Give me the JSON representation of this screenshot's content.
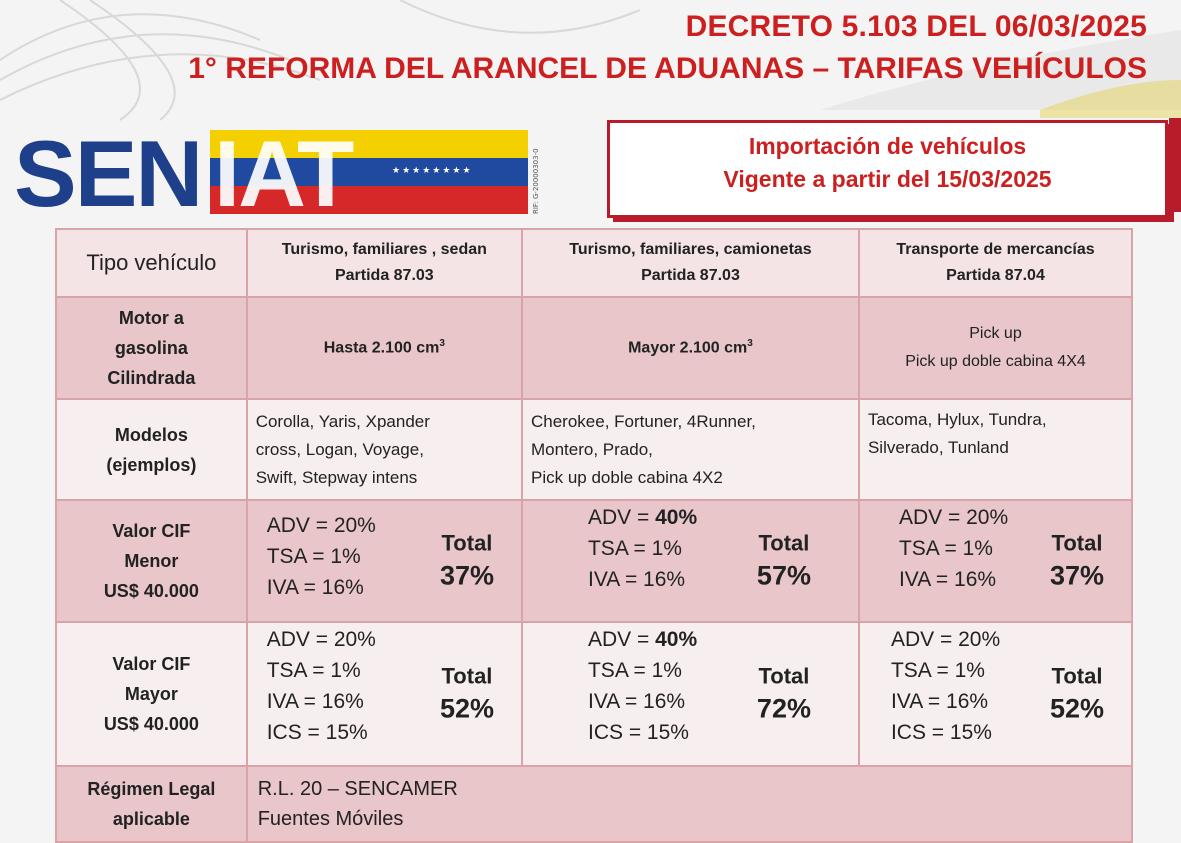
{
  "header": {
    "line1": "DECRETO 5.103 DEL 06/03/2025",
    "line2": "1° REFORMA DEL ARANCEL DE ADUANAS – TARIFAS VEHÍCULOS"
  },
  "logo": {
    "part1": "SEN",
    "part2": "IAT",
    "rif": "RIF: G-20000303-0"
  },
  "notice": {
    "line1": "Importación de vehículos",
    "line2": "Vigente a partir del 15/03/2025"
  },
  "colors": {
    "accent_red": "#cc1f1f",
    "logo_blue": "#1e3f8a",
    "row_pink": "#e8c6c9",
    "row_light": "#f7eeef"
  },
  "table": {
    "header": {
      "label": "Tipo vehículo",
      "cols": [
        {
          "line1": "Turismo, familiares , sedan",
          "line2": "Partida 87.03"
        },
        {
          "line1": "Turismo, familiares, camionetas",
          "line2": "Partida 87.03"
        },
        {
          "line1": "Transporte de mercancías",
          "line2": "Partida 87.04"
        }
      ]
    },
    "motor": {
      "label1": "Motor a",
      "label2": "gasolina",
      "label3": "Cilindrada",
      "col1": "Hasta 2.100 cm",
      "col2": "Mayor 2.100 cm",
      "sup": "3",
      "col3_line1": "Pick up",
      "col3_line2": "Pick up doble cabina 4X4"
    },
    "models": {
      "label1": "Modelos",
      "label2": "(ejemplos)",
      "col1": [
        "Corolla, Yaris, Xpander",
        "cross, Logan, Voyage,",
        "Swift, Stepway intens"
      ],
      "col2": [
        "Cherokee, Fortuner, 4Runner,",
        "Montero, Prado,",
        "Pick up doble cabina 4X2"
      ],
      "col3": [
        "Tacoma, Hylux, Tundra,",
        "Silverado, Tunland"
      ]
    },
    "cif_menor": {
      "label1": "Valor CIF",
      "label2": "Menor",
      "label3": "US$ 40.000",
      "col1": {
        "adv": "ADV = 20%",
        "tsa": "TSA =   1%",
        "iva": "IVA =  16%",
        "total_label": "Total",
        "total": "37%"
      },
      "col2": {
        "adv_prefix": "ADV = ",
        "adv_val": "40%",
        "tsa": "TSA =    1%",
        "iva": "IVA =   16%",
        "total_label": "Total",
        "total": "57%"
      },
      "col3": {
        "adv": "ADV = 20%",
        "tsa": "TSA =    1%",
        "iva": "IVA =  16%",
        "total_label": "Total",
        "total": "37%"
      }
    },
    "cif_mayor": {
      "label1": "Valor CIF",
      "label2": "Mayor",
      "label3": "US$ 40.000",
      "col1": {
        "adv": "ADV = 20%",
        "tsa": "TSA =   1%",
        "iva": "IVA =  16%",
        "ics": "ICS =   15%",
        "total_label": "Total",
        "total": "52%"
      },
      "col2": {
        "adv_prefix": "ADV = ",
        "adv_val": "40%",
        "tsa": "TSA =    1%",
        "iva": "IVA =   16%",
        "ics": "ICS =    15%",
        "total_label": "Total",
        "total": "72%"
      },
      "col3": {
        "adv": "ADV = 20%",
        "tsa": "TSA =    1%",
        "iva": "IVA =  16%",
        "ics": "ICS =   15%",
        "total_label": "Total",
        "total": "52%"
      }
    },
    "regime": {
      "label1": "Régimen Legal",
      "label2": "aplicable",
      "line1": "R.L. 20 – SENCAMER",
      "line2": "Fuentes Móviles"
    }
  }
}
